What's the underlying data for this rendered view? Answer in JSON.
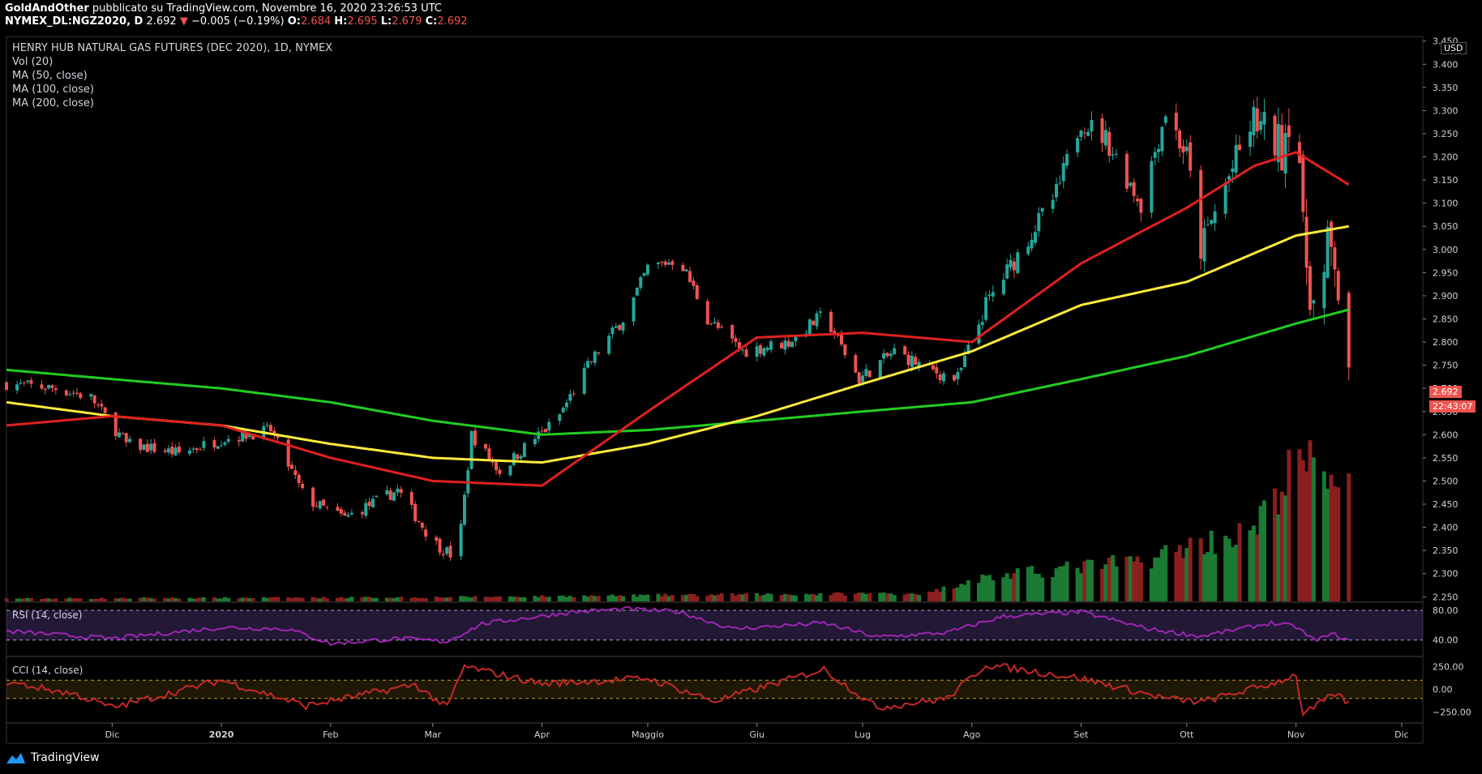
{
  "header": {
    "author": "GoldAndOther",
    "published": "pubblicato su TradingView.com, Novembre 16, 2020 23:26:53 UTC",
    "symbol": "NYMEX_DL:NGZ2020, D",
    "last": "2.692",
    "change": "−0.005 (−0.19%)",
    "open_label": "O:",
    "open": "2.684",
    "high_label": "H:",
    "high": "2.695",
    "low_label": "L:",
    "low": "2.679",
    "close_label": "C:",
    "close": "2.692"
  },
  "legend": {
    "title": "HENRY HUB NATURAL GAS FUTURES (DEC 2020), 1D, NYMEX",
    "vol": "Vol (20)",
    "ma50": "MA (50, close)",
    "ma100": "MA (100, close)",
    "ma200": "MA (200, close)"
  },
  "currency": "USD",
  "price_tag": "2.692",
  "countdown": "22:43:07",
  "rsi_label": "RSI (14, close)",
  "cci_label": "CCI (14, close)",
  "brand": "TradingView",
  "colors": {
    "up": "#26a69a",
    "down": "#ef5350",
    "ma50": "#e02020",
    "ma100": "#ffeb3b",
    "ma200": "#22cc22",
    "rsi": "#9c27b0",
    "cci": "#c62828"
  },
  "chart_data": {
    "type": "candlestick",
    "y_ticks": [
      "3.450",
      "3.400",
      "3.350",
      "3.300",
      "3.250",
      "3.200",
      "3.150",
      "3.100",
      "3.050",
      "3.000",
      "2.950",
      "2.900",
      "2.850",
      "2.800",
      "2.750",
      "2.700",
      "2.650",
      "2.600",
      "2.550",
      "2.500",
      "2.450",
      "2.400",
      "2.350",
      "2.300",
      "2.250"
    ],
    "ylim": [
      2.24,
      3.46
    ],
    "x_labels": [
      {
        "label": "Dic",
        "date": "2019-12-01"
      },
      {
        "label": "2020",
        "date": "2020-01-01"
      },
      {
        "label": "Feb",
        "date": "2020-02-01"
      },
      {
        "label": "Mar",
        "date": "2020-03-01"
      },
      {
        "label": "Apr",
        "date": "2020-04-01"
      },
      {
        "label": "Maggio",
        "date": "2020-05-01"
      },
      {
        "label": "Giu",
        "date": "2020-06-01"
      },
      {
        "label": "Lug",
        "date": "2020-07-01"
      },
      {
        "label": "Ago",
        "date": "2020-08-01"
      },
      {
        "label": "Set",
        "date": "2020-09-01"
      },
      {
        "label": "Ott",
        "date": "2020-10-01"
      },
      {
        "label": "Nov",
        "date": "2020-11-01"
      },
      {
        "label": "Dic",
        "date": "2020-12-01"
      }
    ],
    "x_range": [
      "2019-11-01",
      "2020-12-07"
    ],
    "price_path": [
      {
        "date": "2019-11-01",
        "close": 2.71
      },
      {
        "date": "2019-11-15",
        "close": 2.7
      },
      {
        "date": "2019-11-25",
        "close": 2.68
      },
      {
        "date": "2019-12-05",
        "close": 2.58
      },
      {
        "date": "2019-12-20",
        "close": 2.56
      },
      {
        "date": "2020-01-01",
        "close": 2.59
      },
      {
        "date": "2020-01-15",
        "close": 2.61
      },
      {
        "date": "2020-01-25",
        "close": 2.46
      },
      {
        "date": "2020-02-05",
        "close": 2.42
      },
      {
        "date": "2020-02-20",
        "close": 2.48
      },
      {
        "date": "2020-03-01",
        "close": 2.37
      },
      {
        "date": "2020-03-08",
        "close": 2.33
      },
      {
        "date": "2020-03-12",
        "close": 2.6
      },
      {
        "date": "2020-03-20",
        "close": 2.52
      },
      {
        "date": "2020-03-28",
        "close": 2.58
      },
      {
        "date": "2020-04-05",
        "close": 2.63
      },
      {
        "date": "2020-04-15",
        "close": 2.76
      },
      {
        "date": "2020-04-25",
        "close": 2.86
      },
      {
        "date": "2020-05-01",
        "close": 2.96
      },
      {
        "date": "2020-05-10",
        "close": 2.98
      },
      {
        "date": "2020-05-18",
        "close": 2.85
      },
      {
        "date": "2020-05-28",
        "close": 2.78
      },
      {
        "date": "2020-06-10",
        "close": 2.8
      },
      {
        "date": "2020-06-20",
        "close": 2.86
      },
      {
        "date": "2020-06-30",
        "close": 2.72
      },
      {
        "date": "2020-07-10",
        "close": 2.78
      },
      {
        "date": "2020-07-20",
        "close": 2.74
      },
      {
        "date": "2020-07-28",
        "close": 2.72
      },
      {
        "date": "2020-08-05",
        "close": 2.88
      },
      {
        "date": "2020-08-15",
        "close": 3.0
      },
      {
        "date": "2020-08-25",
        "close": 3.12
      },
      {
        "date": "2020-09-01",
        "close": 3.28
      },
      {
        "date": "2020-09-08",
        "close": 3.24
      },
      {
        "date": "2020-09-18",
        "close": 3.1
      },
      {
        "date": "2020-09-25",
        "close": 3.3
      },
      {
        "date": "2020-10-01",
        "close": 3.2
      },
      {
        "date": "2020-10-05",
        "close": 3.0
      },
      {
        "date": "2020-10-12",
        "close": 3.14
      },
      {
        "date": "2020-10-20",
        "close": 3.28
      },
      {
        "date": "2020-10-28",
        "close": 3.22
      },
      {
        "date": "2020-11-01",
        "close": 3.38
      },
      {
        "date": "2020-11-03",
        "close": 3.02
      },
      {
        "date": "2020-11-06",
        "close": 2.88
      },
      {
        "date": "2020-11-08",
        "close": 2.85
      },
      {
        "date": "2020-11-10",
        "close": 3.0
      },
      {
        "date": "2020-11-12",
        "close": 2.98
      },
      {
        "date": "2020-11-16",
        "close": 2.692
      }
    ],
    "ma50": [
      {
        "date": "2019-11-01",
        "value": 2.62
      },
      {
        "date": "2019-12-01",
        "value": 2.64
      },
      {
        "date": "2020-01-01",
        "value": 2.62
      },
      {
        "date": "2020-02-01",
        "value": 2.55
      },
      {
        "date": "2020-03-01",
        "value": 2.5
      },
      {
        "date": "2020-04-01",
        "value": 2.49
      },
      {
        "date": "2020-05-01",
        "value": 2.65
      },
      {
        "date": "2020-06-01",
        "value": 2.81
      },
      {
        "date": "2020-07-01",
        "value": 2.82
      },
      {
        "date": "2020-08-01",
        "value": 2.8
      },
      {
        "date": "2020-09-01",
        "value": 2.97
      },
      {
        "date": "2020-10-01",
        "value": 3.09
      },
      {
        "date": "2020-10-20",
        "value": 3.18
      },
      {
        "date": "2020-11-01",
        "value": 3.21
      },
      {
        "date": "2020-11-16",
        "value": 3.14
      }
    ],
    "ma100": [
      {
        "date": "2019-11-01",
        "value": 2.67
      },
      {
        "date": "2019-12-01",
        "value": 2.64
      },
      {
        "date": "2020-01-01",
        "value": 2.62
      },
      {
        "date": "2020-02-01",
        "value": 2.58
      },
      {
        "date": "2020-03-01",
        "value": 2.55
      },
      {
        "date": "2020-04-01",
        "value": 2.54
      },
      {
        "date": "2020-05-01",
        "value": 2.58
      },
      {
        "date": "2020-06-01",
        "value": 2.64
      },
      {
        "date": "2020-07-01",
        "value": 2.71
      },
      {
        "date": "2020-08-01",
        "value": 2.78
      },
      {
        "date": "2020-09-01",
        "value": 2.88
      },
      {
        "date": "2020-10-01",
        "value": 2.93
      },
      {
        "date": "2020-11-01",
        "value": 3.03
      },
      {
        "date": "2020-11-16",
        "value": 3.05
      }
    ],
    "ma200": [
      {
        "date": "2019-11-01",
        "value": 2.74
      },
      {
        "date": "2019-12-01",
        "value": 2.72
      },
      {
        "date": "2020-01-01",
        "value": 2.7
      },
      {
        "date": "2020-02-01",
        "value": 2.67
      },
      {
        "date": "2020-03-01",
        "value": 2.63
      },
      {
        "date": "2020-04-01",
        "value": 2.6
      },
      {
        "date": "2020-05-01",
        "value": 2.61
      },
      {
        "date": "2020-06-01",
        "value": 2.63
      },
      {
        "date": "2020-07-01",
        "value": 2.65
      },
      {
        "date": "2020-08-01",
        "value": 2.67
      },
      {
        "date": "2020-09-01",
        "value": 2.72
      },
      {
        "date": "2020-10-01",
        "value": 2.77
      },
      {
        "date": "2020-11-01",
        "value": 2.84
      },
      {
        "date": "2020-11-16",
        "value": 2.87
      }
    ],
    "volume_profile": [
      {
        "date": "2019-11-01",
        "value": 0.02
      },
      {
        "date": "2020-03-01",
        "value": 0.03
      },
      {
        "date": "2020-06-01",
        "value": 0.05
      },
      {
        "date": "2020-07-20",
        "value": 0.06
      },
      {
        "date": "2020-08-01",
        "value": 0.16
      },
      {
        "date": "2020-09-01",
        "value": 0.25
      },
      {
        "date": "2020-09-20",
        "value": 0.3
      },
      {
        "date": "2020-10-01",
        "value": 0.4
      },
      {
        "date": "2020-10-20",
        "value": 0.5
      },
      {
        "date": "2020-11-01",
        "value": 1.0
      },
      {
        "date": "2020-11-16",
        "value": 0.9
      }
    ],
    "rsi": {
      "levels": [
        "80.00",
        "40.00"
      ],
      "ticks": [
        80,
        40
      ],
      "ylim": [
        20,
        90
      ],
      "path": [
        {
          "date": "2019-11-01",
          "value": 52
        },
        {
          "date": "2019-12-01",
          "value": 42
        },
        {
          "date": "2020-01-01",
          "value": 57
        },
        {
          "date": "2020-01-20",
          "value": 55
        },
        {
          "date": "2020-02-01",
          "value": 35
        },
        {
          "date": "2020-02-20",
          "value": 42
        },
        {
          "date": "2020-03-05",
          "value": 38
        },
        {
          "date": "2020-03-15",
          "value": 62
        },
        {
          "date": "2020-04-10",
          "value": 78
        },
        {
          "date": "2020-04-25",
          "value": 82
        },
        {
          "date": "2020-05-10",
          "value": 78
        },
        {
          "date": "2020-05-25",
          "value": 55
        },
        {
          "date": "2020-06-20",
          "value": 63
        },
        {
          "date": "2020-07-05",
          "value": 44
        },
        {
          "date": "2020-07-25",
          "value": 50
        },
        {
          "date": "2020-08-10",
          "value": 72
        },
        {
          "date": "2020-09-01",
          "value": 78
        },
        {
          "date": "2020-09-20",
          "value": 55
        },
        {
          "date": "2020-10-05",
          "value": 45
        },
        {
          "date": "2020-10-25",
          "value": 63
        },
        {
          "date": "2020-11-01",
          "value": 58
        },
        {
          "date": "2020-11-06",
          "value": 40
        },
        {
          "date": "2020-11-12",
          "value": 48
        },
        {
          "date": "2020-11-16",
          "value": 38
        }
      ]
    },
    "cci": {
      "ticks_label": [
        "250.00",
        "0.00",
        "−250.00"
      ],
      "ticks": [
        250,
        0,
        -250
      ],
      "levels": [
        100,
        -100
      ],
      "ylim": [
        -350,
        350
      ],
      "path": [
        {
          "date": "2019-11-01",
          "value": 80
        },
        {
          "date": "2019-11-20",
          "value": -50
        },
        {
          "date": "2019-12-01",
          "value": -200
        },
        {
          "date": "2020-01-01",
          "value": 100
        },
        {
          "date": "2020-01-25",
          "value": -180
        },
        {
          "date": "2020-02-10",
          "value": -60
        },
        {
          "date": "2020-02-25",
          "value": 50
        },
        {
          "date": "2020-03-05",
          "value": -200
        },
        {
          "date": "2020-03-10",
          "value": 250
        },
        {
          "date": "2020-04-01",
          "value": 60
        },
        {
          "date": "2020-05-01",
          "value": 120
        },
        {
          "date": "2020-05-20",
          "value": -130
        },
        {
          "date": "2020-06-20",
          "value": 220
        },
        {
          "date": "2020-07-05",
          "value": -200
        },
        {
          "date": "2020-07-25",
          "value": -100
        },
        {
          "date": "2020-08-05",
          "value": 270
        },
        {
          "date": "2020-09-01",
          "value": 120
        },
        {
          "date": "2020-09-25",
          "value": -100
        },
        {
          "date": "2020-10-05",
          "value": -140
        },
        {
          "date": "2020-10-25",
          "value": 60
        },
        {
          "date": "2020-11-01",
          "value": 160
        },
        {
          "date": "2020-11-03",
          "value": -280
        },
        {
          "date": "2020-11-12",
          "value": -50
        },
        {
          "date": "2020-11-16",
          "value": -150
        }
      ]
    }
  }
}
